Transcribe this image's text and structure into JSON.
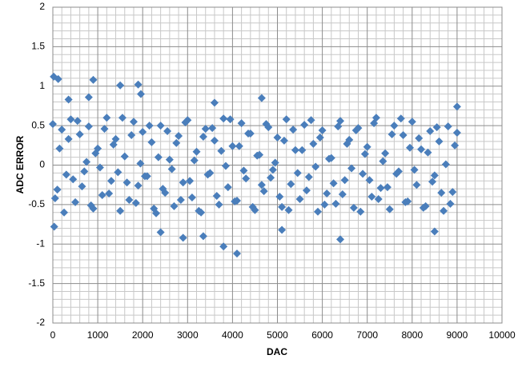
{
  "chart_data": {
    "type": "scatter",
    "x_label": "DAC",
    "y_label": "ADC ERROR",
    "color": "#4a7ebb",
    "grid": true,
    "xlim": [
      0,
      10000
    ],
    "xticks": [
      0,
      1000,
      2000,
      3000,
      4000,
      5000,
      6000,
      7000,
      8000,
      9000,
      10000
    ],
    "ylim": [
      -2,
      2
    ],
    "yticks": [
      -2,
      -1.5,
      -1,
      -0.5,
      0,
      0.5,
      1,
      1.5,
      2
    ],
    "x": [
      0,
      100,
      200,
      300,
      400,
      500,
      600,
      700,
      800,
      900,
      1000,
      1100,
      1200,
      1300,
      1400,
      1500,
      1600,
      1700,
      1800,
      1900,
      2000,
      2100,
      2200,
      2300,
      2400,
      2500,
      2600,
      2700,
      2800,
      2900,
      3000,
      3100,
      3200,
      3300,
      3400,
      3500,
      3600,
      3700,
      3800,
      3900,
      4000,
      4100,
      4200,
      4300,
      4400,
      4500,
      4600,
      4700,
      4800,
      4900,
      5000,
      5100,
      5200,
      5300,
      5400,
      5500,
      5600,
      5700,
      5800,
      5900,
      6000,
      6100,
      6200,
      6300,
      6400,
      6500,
      6600,
      6700,
      6800,
      6900,
      7000,
      7100,
      7200,
      7300,
      7400,
      7500,
      7600,
      7700,
      7800,
      7900,
      8000,
      8100,
      8200,
      8300,
      8400,
      8500,
      8600,
      8700,
      8800,
      8900,
      9000,
      50,
      150,
      250,
      350,
      450,
      550,
      650,
      750,
      850,
      950,
      1050,
      1150,
      1250,
      1350,
      1450,
      1550,
      1650,
      1750,
      1850,
      1950,
      2050,
      2150,
      2250,
      2350,
      2450,
      2550,
      2650,
      2750,
      2850,
      2950,
      3050,
      3150,
      3250,
      3350,
      3450,
      3550,
      3650,
      3750,
      3850,
      3950,
      4050,
      4150,
      4250,
      4350,
      4450,
      4550,
      4650,
      4750,
      4850,
      4950,
      5050,
      5150,
      5250,
      5350,
      5450,
      5550,
      5650,
      5750,
      5850,
      5950,
      6050,
      6150,
      6250,
      6350,
      6450,
      6550,
      6650,
      6750,
      6850,
      6950,
      7050,
      7150,
      7250,
      7350,
      7450,
      7550,
      7650,
      7750,
      7850,
      7950,
      8050,
      8150,
      8250,
      8350,
      8450,
      8550,
      8650,
      8750,
      8850,
      8950,
      20,
      120,
      900,
      1500,
      1900,
      1960,
      350,
      800,
      3600,
      4650,
      9000,
      4100,
      3800,
      6400,
      30,
      8500,
      2900,
      3350,
      5100,
      2400
    ],
    "values": [
      0.52,
      -0.31,
      0.45,
      -0.12,
      0.58,
      -0.47,
      0.39,
      -0.08,
      0.49,
      -0.55,
      0.21,
      -0.38,
      0.6,
      -0.2,
      0.33,
      -0.58,
      0.11,
      -0.44,
      0.55,
      -0.26,
      0.42,
      -0.14,
      0.29,
      -0.61,
      0.5,
      -0.35,
      0.07,
      -0.52,
      0.37,
      -0.22,
      0.57,
      -0.41,
      0.17,
      -0.6,
      0.46,
      -0.1,
      0.31,
      -0.5,
      0.59,
      -0.28,
      0.24,
      -0.45,
      0.53,
      -0.17,
      0.4,
      -0.57,
      0.13,
      -0.33,
      0.48,
      -0.06,
      0.35,
      -0.53,
      0.58,
      -0.24,
      0.19,
      -0.43,
      0.51,
      -0.15,
      0.27,
      -0.59,
      0.44,
      -0.36,
      0.09,
      -0.49,
      0.56,
      -0.19,
      0.32,
      -0.54,
      0.47,
      -0.11,
      0.23,
      -0.4,
      0.6,
      -0.29,
      0.15,
      -0.56,
      0.5,
      -0.08,
      0.38,
      -0.46,
      0.55,
      -0.25,
      0.2,
      -0.52,
      0.43,
      -0.13,
      0.3,
      -0.58,
      0.49,
      -0.34,
      0.41,
      -0.42,
      0.21,
      -0.6,
      0.33,
      -0.18,
      0.56,
      -0.27,
      0.04,
      -0.51,
      0.15,
      -0.03,
      0.46,
      -0.36,
      0.26,
      -0.09,
      0.6,
      -0.22,
      0.38,
      -0.48,
      0.02,
      -0.14,
      0.5,
      -0.55,
      0.1,
      -0.3,
      0.43,
      -0.05,
      0.28,
      -0.44,
      0.54,
      -0.2,
      0.06,
      -0.58,
      0.36,
      -0.12,
      0.47,
      -0.39,
      0.18,
      -0.01,
      0.58,
      -0.46,
      0.24,
      -0.07,
      0.4,
      -0.53,
      0.12,
      -0.25,
      0.52,
      -0.16,
      0.03,
      -0.4,
      0.31,
      -0.57,
      0.45,
      -0.1,
      0.19,
      -0.32,
      0.57,
      -0.02,
      0.35,
      -0.5,
      0.08,
      -0.23,
      0.49,
      -0.37,
      0.27,
      -0.04,
      0.44,
      -0.59,
      0.14,
      -0.19,
      0.53,
      -0.43,
      0.05,
      -0.28,
      0.39,
      -0.11,
      0.59,
      -0.47,
      0.22,
      -0.06,
      0.34,
      -0.54,
      0.16,
      -0.21,
      0.48,
      -0.35,
      0.01,
      -0.49,
      0.25,
      1.12,
      1.09,
      1.08,
      1.01,
      1.02,
      0.9,
      0.83,
      0.86,
      0.79,
      0.85,
      0.74,
      -1.12,
      -1.03,
      -0.94,
      -0.78,
      -0.84,
      -0.92,
      -0.9,
      -0.82,
      -0.85
    ]
  }
}
